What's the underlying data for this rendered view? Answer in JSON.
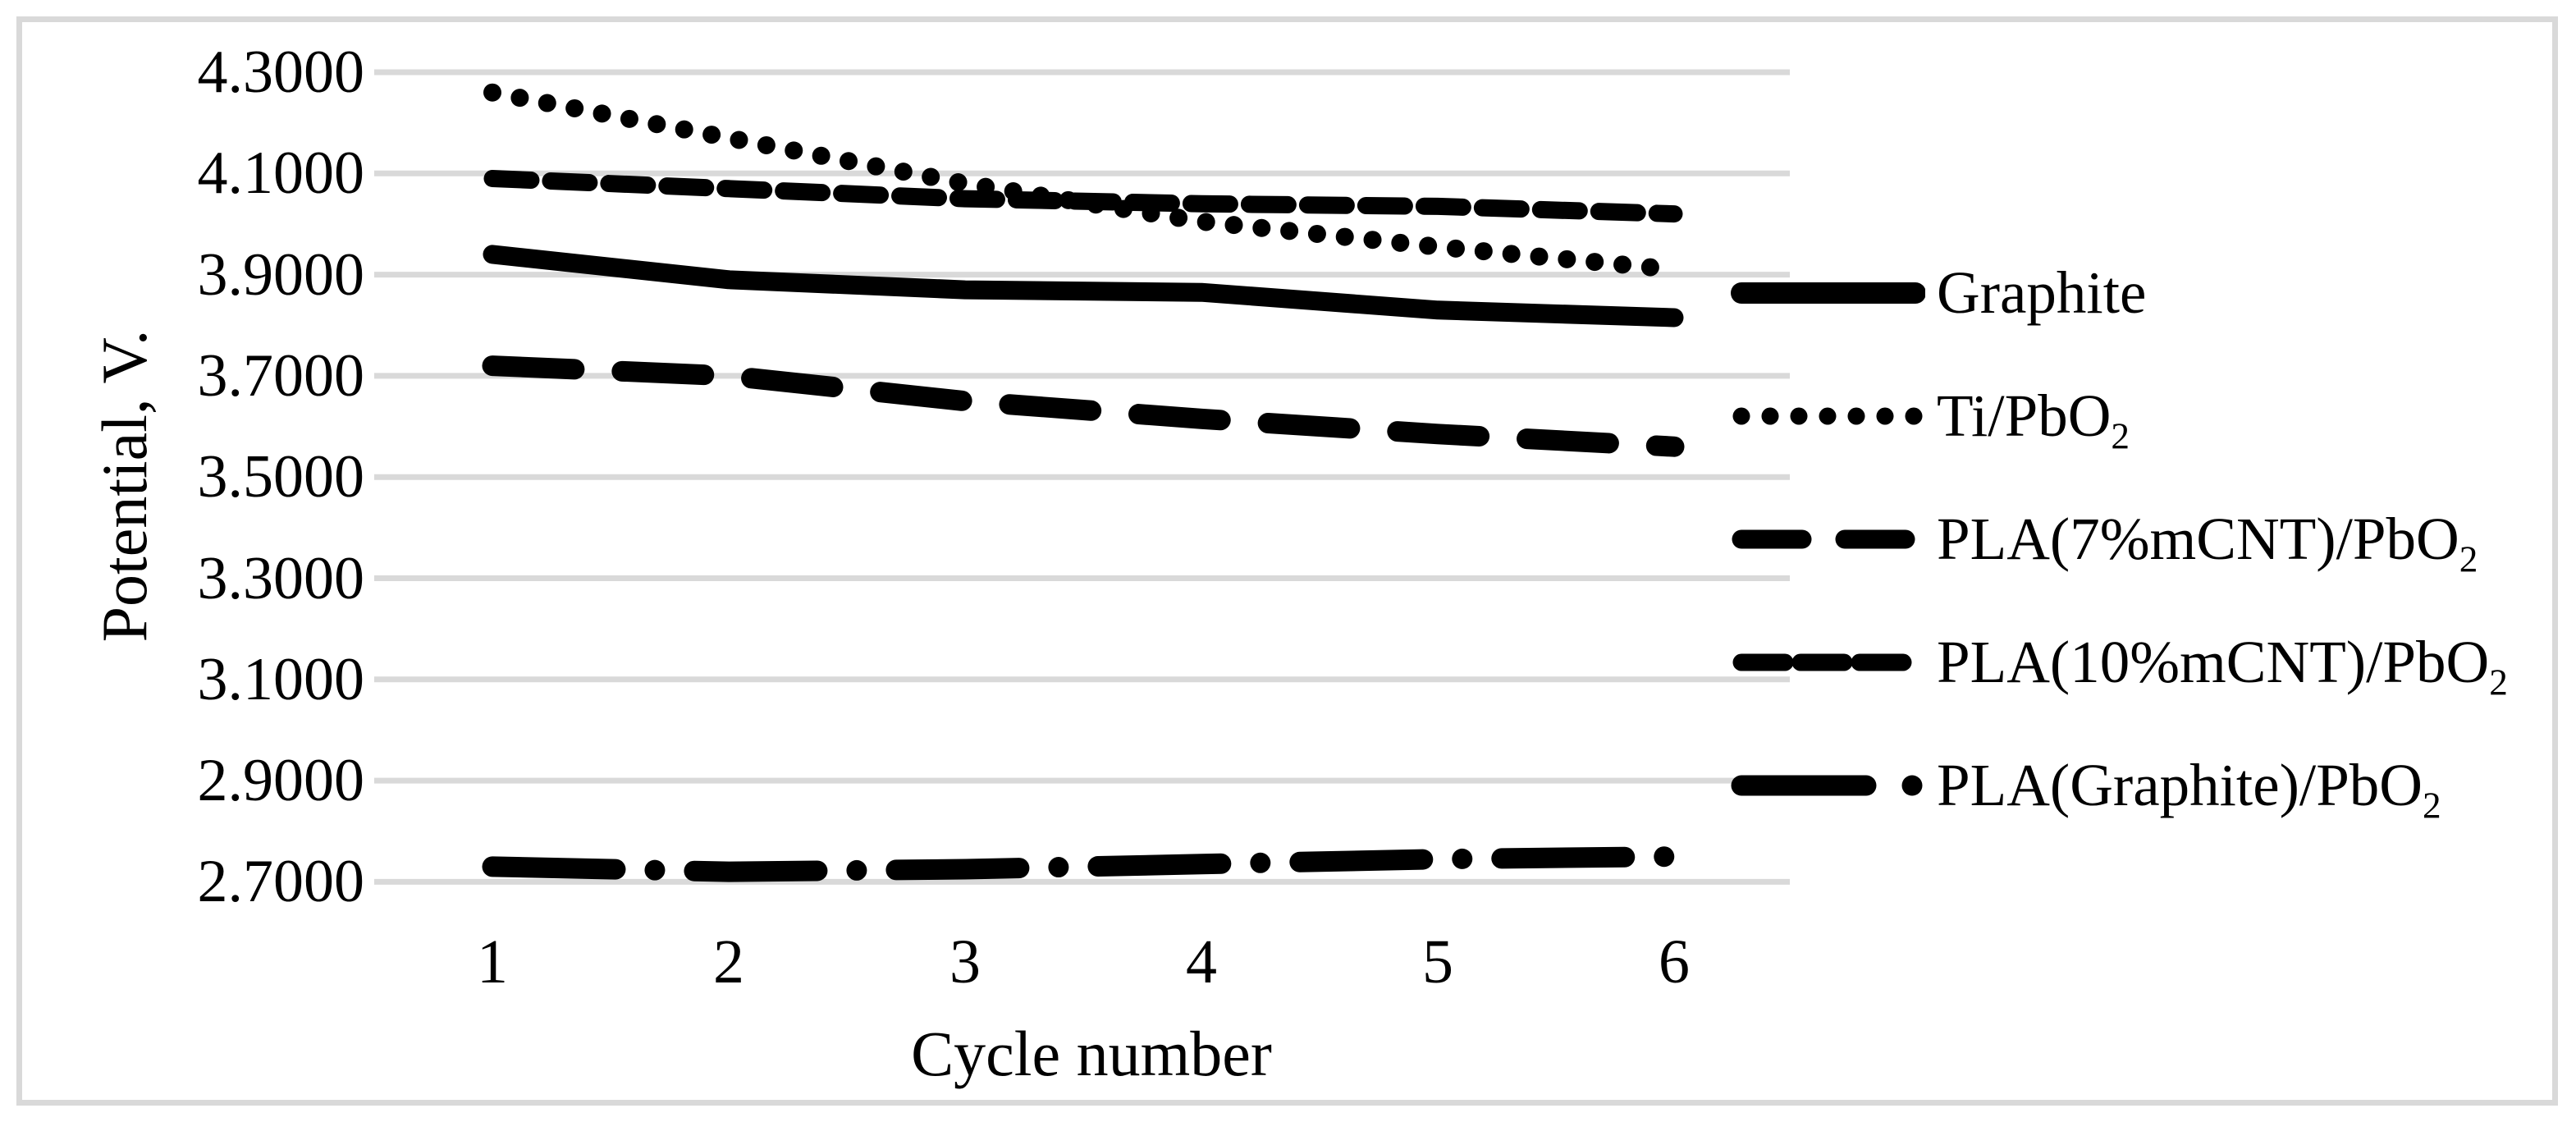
{
  "figure": {
    "background": "#ffffff",
    "border_color": "#d9d9d9"
  },
  "chart_data": {
    "type": "line",
    "title": "",
    "xlabel": "Cycle number",
    "ylabel": "Potential, V.",
    "categories": [
      "1",
      "2",
      "3",
      "4",
      "5",
      "6"
    ],
    "yticks": [
      "4.3000",
      "4.1000",
      "3.9000",
      "3.7000",
      "3.5000",
      "3.3000",
      "3.1000",
      "2.9000",
      "2.7000"
    ],
    "ylim": [
      2.7,
      4.3
    ],
    "grid": true,
    "gridline_color": "#d9d9d9",
    "line_color": "#000000",
    "legend_position": "right",
    "series": [
      {
        "name": "Graphite",
        "dash": "solid",
        "values": [
          3.94,
          3.89,
          3.87,
          3.865,
          3.83,
          3.815
        ]
      },
      {
        "name": "Ti/PbO₂",
        "dash": "dot",
        "values": [
          4.26,
          4.17,
          4.08,
          4.005,
          3.955,
          3.91
        ]
      },
      {
        "name": "PLA(7%mCNT)/PbO₂",
        "dash": "long-dash",
        "values": [
          3.72,
          3.7,
          3.65,
          3.615,
          3.585,
          3.56
        ]
      },
      {
        "name": "PLA(10%mCNT)/PbO₂",
        "dash": "dash",
        "values": [
          4.09,
          4.07,
          4.05,
          4.04,
          4.035,
          4.02
        ]
      },
      {
        "name": "PLA(Graphite)/PbO₂",
        "dash": "dash-dot",
        "values": [
          2.73,
          2.72,
          2.725,
          2.735,
          2.745,
          2.75
        ]
      }
    ]
  }
}
